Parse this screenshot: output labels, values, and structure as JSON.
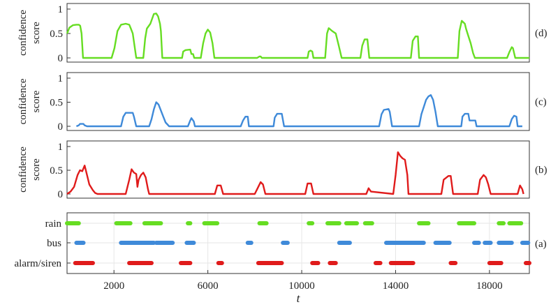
{
  "chart_data": [
    {
      "type": "line",
      "panel_label": "(d)",
      "ylabel_lines": [
        "confidence",
        "score"
      ],
      "ylim": [
        0,
        1
      ],
      "yticks": [
        0,
        0.5,
        1
      ],
      "ytick_labels": [
        "0",
        "0.5",
        "1"
      ],
      "xlim": [
        0,
        19700
      ],
      "grid": false,
      "series": [
        {
          "color": "#66dd22",
          "x": [
            0,
            100,
            250,
            400,
            500,
            560,
            620,
            680,
            1000,
            1350,
            1900,
            2020,
            2150,
            2300,
            2500,
            2650,
            2720,
            2800,
            2950,
            3250,
            3330,
            3400,
            3550,
            3700,
            3800,
            3880,
            3960,
            4000,
            4060,
            4900,
            4950,
            5050,
            5250,
            5300,
            5370,
            5420,
            5700,
            5800,
            5900,
            6000,
            6100,
            6200,
            6280,
            8100,
            8200,
            8250,
            8300,
            10250,
            10300,
            10380,
            10450,
            10500,
            11000,
            11080,
            11150,
            11300,
            11450,
            11580,
            11700,
            12500,
            12580,
            12680,
            12800,
            12880,
            14650,
            14730,
            14850,
            14950,
            15000,
            16650,
            16720,
            16820,
            16950,
            17000,
            17100,
            17200,
            17300,
            17380,
            18750,
            18850,
            18950,
            19000,
            19100,
            19700
          ],
          "y": [
            0.5,
            0.62,
            0.67,
            0.68,
            0.68,
            0.66,
            0.5,
            0.0,
            0.0,
            0.0,
            0.0,
            0.2,
            0.55,
            0.68,
            0.7,
            0.68,
            0.6,
            0.5,
            0.0,
            0.0,
            0.4,
            0.6,
            0.7,
            0.9,
            0.91,
            0.85,
            0.7,
            0.55,
            0.0,
            0.0,
            0.13,
            0.16,
            0.17,
            0.08,
            0.08,
            0.0,
            0.0,
            0.3,
            0.5,
            0.58,
            0.52,
            0.3,
            0.0,
            0.0,
            0.03,
            0.03,
            0.0,
            0.0,
            0.13,
            0.15,
            0.13,
            0.0,
            0.0,
            0.5,
            0.61,
            0.55,
            0.5,
            0.25,
            0.0,
            0.0,
            0.25,
            0.38,
            0.38,
            0.0,
            0.0,
            0.35,
            0.44,
            0.44,
            0.0,
            0.0,
            0.55,
            0.76,
            0.7,
            0.6,
            0.45,
            0.3,
            0.1,
            0.0,
            0.0,
            0.12,
            0.22,
            0.2,
            0.0,
            0.0
          ]
        }
      ]
    },
    {
      "type": "line",
      "panel_label": "(c)",
      "ylabel_lines": [
        "confidence",
        "score"
      ],
      "ylim": [
        0,
        1
      ],
      "yticks": [
        0,
        0.5,
        1
      ],
      "ytick_labels": [
        "0",
        "0.5",
        "1"
      ],
      "xlim": [
        0,
        19700
      ],
      "grid": false,
      "series": [
        {
          "color": "#3f8ad9",
          "x": [
            400,
            500,
            550,
            700,
            750,
            850,
            2300,
            2400,
            2500,
            2800,
            2850,
            2950,
            3500,
            3600,
            3700,
            3800,
            3900,
            4100,
            4200,
            4350,
            5150,
            5250,
            5300,
            5400,
            5450,
            7400,
            7500,
            7600,
            7700,
            7750,
            8800,
            8850,
            8950,
            9150,
            9250,
            13300,
            13400,
            13500,
            13700,
            13750,
            13850,
            15000,
            15100,
            15200,
            15300,
            15400,
            15500,
            15600,
            15700,
            15800,
            16800,
            16850,
            16950,
            17100,
            17150,
            17400,
            17450,
            17700,
            17750,
            18850,
            18950,
            19050,
            19150,
            19200,
            19400
          ],
          "y": [
            0.0,
            0.02,
            0.05,
            0.05,
            0.02,
            0.0,
            0.0,
            0.2,
            0.28,
            0.28,
            0.2,
            0.0,
            0.0,
            0.15,
            0.35,
            0.5,
            0.45,
            0.2,
            0.08,
            0.0,
            0.0,
            0.12,
            0.17,
            0.1,
            0.0,
            0.0,
            0.12,
            0.2,
            0.2,
            0.0,
            0.0,
            0.18,
            0.26,
            0.26,
            0.0,
            0.0,
            0.25,
            0.34,
            0.36,
            0.3,
            0.0,
            0.0,
            0.25,
            0.4,
            0.55,
            0.62,
            0.65,
            0.55,
            0.3,
            0.0,
            0.0,
            0.2,
            0.26,
            0.26,
            0.12,
            0.12,
            0.0,
            0.0,
            0.0,
            0.0,
            0.15,
            0.22,
            0.2,
            0.0,
            0.0
          ]
        }
      ]
    },
    {
      "type": "line",
      "panel_label": "(b)",
      "ylabel_lines": [
        "confidence",
        "score"
      ],
      "ylim": [
        0,
        1
      ],
      "yticks": [
        0,
        0.5,
        1
      ],
      "ytick_labels": [
        "0",
        "0.5",
        "1"
      ],
      "xlim": [
        0,
        19700
      ],
      "grid": false,
      "series": [
        {
          "color": "#e01b1b",
          "x": [
            0,
            150,
            300,
            450,
            550,
            650,
            750,
            850,
            950,
            1100,
            1200,
            1300,
            1400,
            2500,
            2650,
            2750,
            2850,
            2950,
            3000,
            3050,
            3150,
            3250,
            3350,
            3450,
            3500,
            6300,
            6400,
            6550,
            6650,
            8000,
            8100,
            8250,
            8350,
            8450,
            10150,
            10250,
            10400,
            10500,
            12750,
            12850,
            12950,
            13900,
            14000,
            14100,
            14200,
            14300,
            14400,
            14500,
            14550,
            15950,
            16050,
            16250,
            16350,
            16450,
            17500,
            17600,
            17750,
            17850,
            17950,
            18050,
            19200,
            19300,
            19400,
            19450
          ],
          "y": [
            0.0,
            0.05,
            0.15,
            0.4,
            0.5,
            0.48,
            0.6,
            0.4,
            0.2,
            0.08,
            0.02,
            0.0,
            0.0,
            0.0,
            0.3,
            0.52,
            0.45,
            0.42,
            0.15,
            0.3,
            0.4,
            0.45,
            0.35,
            0.1,
            0.0,
            0.0,
            0.18,
            0.18,
            0.0,
            0.0,
            0.1,
            0.25,
            0.2,
            0.0,
            0.0,
            0.22,
            0.22,
            0.0,
            0.0,
            0.12,
            0.05,
            0.0,
            0.4,
            0.88,
            0.8,
            0.75,
            0.72,
            0.4,
            0.0,
            0.0,
            0.3,
            0.38,
            0.38,
            0.0,
            0.0,
            0.3,
            0.4,
            0.35,
            0.2,
            0.0,
            0.0,
            0.18,
            0.1,
            0.0
          ]
        }
      ]
    },
    {
      "type": "scatter",
      "panel_label": "(a)",
      "categories": [
        "rain",
        "bus",
        "alarm/siren"
      ],
      "xlim": [
        0,
        19700
      ],
      "xticks": [
        2000,
        6000,
        10000,
        14000,
        18000
      ],
      "xtick_labels": [
        "2000",
        "6000",
        "10000",
        "14000",
        "18000"
      ],
      "xlabel": "t",
      "grid": true,
      "series": [
        {
          "category": "rain",
          "color": "#66dd22",
          "segments": [
            [
              0,
              500
            ],
            [
              2100,
              2700
            ],
            [
              3300,
              4000
            ],
            [
              5150,
              5250
            ],
            [
              5850,
              6400
            ],
            [
              8200,
              8500
            ],
            [
              10300,
              10450
            ],
            [
              11100,
              11600
            ],
            [
              11900,
              12350
            ],
            [
              12700,
              13000
            ],
            [
              15000,
              15400
            ],
            [
              16700,
              17350
            ],
            [
              18400,
              18600
            ],
            [
              18850,
              19350
            ]
          ]
        },
        {
          "category": "bus",
          "color": "#3f8ad9",
          "segments": [
            [
              400,
              700
            ],
            [
              2300,
              3700
            ],
            [
              3800,
              4500
            ],
            [
              5100,
              5400
            ],
            [
              7700,
              7850
            ],
            [
              9200,
              9400
            ],
            [
              11600,
              12050
            ],
            [
              13600,
              15200
            ],
            [
              15700,
              16300
            ],
            [
              17350,
              17550
            ],
            [
              17800,
              18050
            ],
            [
              18400,
              18950
            ],
            [
              19400,
              19650
            ]
          ]
        },
        {
          "category": "alarm/siren",
          "color": "#e01b1b",
          "segments": [
            [
              350,
              1100
            ],
            [
              2650,
              3600
            ],
            [
              4850,
              5250
            ],
            [
              6450,
              6600
            ],
            [
              8150,
              9150
            ],
            [
              10450,
              10700
            ],
            [
              11200,
              11450
            ],
            [
              13150,
              13350
            ],
            [
              13800,
              14750
            ],
            [
              16350,
              16550
            ],
            [
              18000,
              18500
            ],
            [
              19550,
              19700
            ]
          ]
        }
      ]
    }
  ]
}
